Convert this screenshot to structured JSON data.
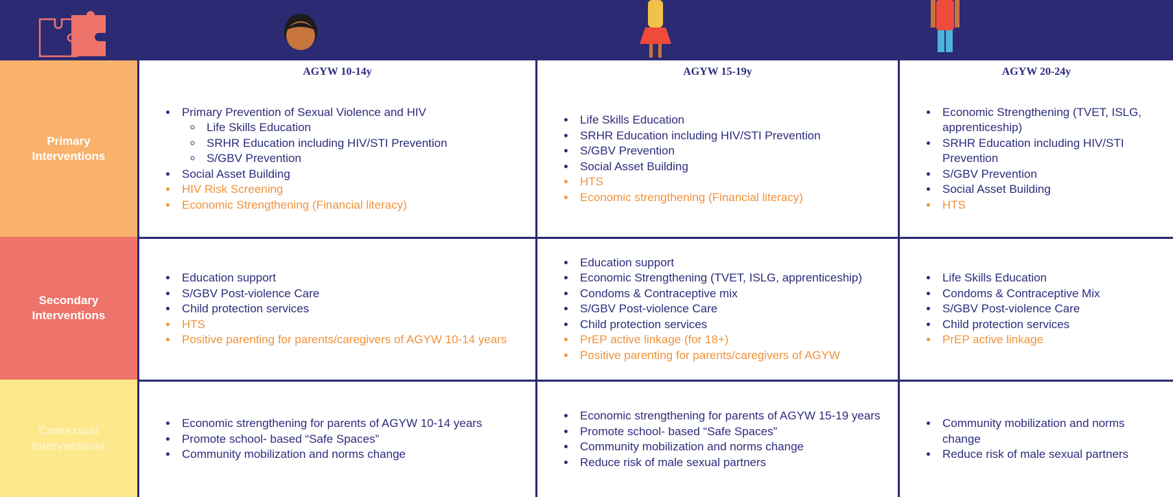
{
  "header": {
    "columns": [
      "AGYW 10-14y",
      "AGYW 15-19y",
      "AGYW 20-24y"
    ]
  },
  "colors": {
    "normal": "#2b2d7c",
    "highlight": "#f0923b"
  },
  "rows": [
    {
      "label": "Primary Interventions",
      "label_color": "#ffffff",
      "background": "#f8b26c",
      "cells": [
        {
          "items": [
            {
              "text": "Primary Prevention of Sexual Violence and HIV",
              "highlight": false,
              "children": [
                {
                  "text": "Life Skills Education",
                  "highlight": false
                },
                {
                  "text": "SRHR Education including HIV/STI Prevention",
                  "highlight": false
                },
                {
                  "text": "S/GBV Prevention",
                  "highlight": false
                }
              ]
            },
            {
              "text": "Social Asset Building",
              "highlight": false
            },
            {
              "text": "HIV Risk Screening",
              "highlight": true
            },
            {
              "text": "Economic Strengthening (Financial literacy)",
              "highlight": true
            }
          ]
        },
        {
          "items": [
            {
              "text": "Life Skills Education",
              "highlight": false
            },
            {
              "text": "SRHR Education including HIV/STI Prevention",
              "highlight": false
            },
            {
              "text": "S/GBV Prevention",
              "highlight": false
            },
            {
              "text": "Social Asset Building",
              "highlight": false
            },
            {
              "text": "HTS",
              "highlight": true
            },
            {
              "text": "Economic strengthening (Financial literacy)",
              "highlight": true
            }
          ]
        },
        {
          "items": [
            {
              "text": "Economic Strengthening (TVET, ISLG, apprenticeship)",
              "highlight": false
            },
            {
              "text": "SRHR Education including HIV/STI Prevention",
              "highlight": false
            },
            {
              "text": "S/GBV Prevention",
              "highlight": false
            },
            {
              "text": "Social Asset Building",
              "highlight": false
            },
            {
              "text": "HTS",
              "highlight": true
            }
          ]
        }
      ]
    },
    {
      "label": "Secondary Interventions",
      "label_color": "#ffffff",
      "background": "#ee736a",
      "cells": [
        {
          "items": [
            {
              "text": "Education support",
              "highlight": false
            },
            {
              "text": "S/GBV Post-violence Care",
              "highlight": false
            },
            {
              "text": "Child protection services",
              "highlight": false
            },
            {
              "text": "HTS",
              "highlight": true
            },
            {
              "text": "Positive parenting for parents/caregivers of AGYW 10-14 years",
              "highlight": true
            }
          ]
        },
        {
          "items": [
            {
              "text": "Education support",
              "highlight": false
            },
            {
              "text": "Economic Strengthening (TVET, ISLG, apprenticeship)",
              "highlight": false
            },
            {
              "text": "Condoms & Contraceptive mix",
              "highlight": false
            },
            {
              "text": "S/GBV Post-violence Care",
              "highlight": false
            },
            {
              "text": "Child protection services",
              "highlight": false
            },
            {
              "text": "PrEP active linkage (for 18+)",
              "highlight": true
            },
            {
              "text": "Positive parenting for parents/caregivers of AGYW",
              "highlight": true
            }
          ]
        },
        {
          "items": [
            {
              "text": "Life Skills Education",
              "highlight": false
            },
            {
              "text": "Condoms & Contraceptive Mix",
              "highlight": false
            },
            {
              "text": "S/GBV Post-violence Care",
              "highlight": false
            },
            {
              "text": "Child protection services",
              "highlight": false
            },
            {
              "text": "PrEP active linkage",
              "highlight": true
            }
          ]
        }
      ]
    },
    {
      "label": "Contextual Interventions",
      "label_color": "#fbf3c8",
      "background": "#fde98b",
      "cells": [
        {
          "items": [
            {
              "text": "Economic strengthening for parents of AGYW 10-14 years",
              "highlight": false
            },
            {
              "text": "Promote school- based “Safe Spaces”",
              "highlight": false
            },
            {
              "text": "Community mobilization and norms change",
              "highlight": false
            }
          ]
        },
        {
          "items": [
            {
              "text": "Economic strengthening for parents of AGYW 15-19 years",
              "highlight": false
            },
            {
              "text": "Promote school- based “Safe Spaces”",
              "highlight": false
            },
            {
              "text": "Community mobilization and norms change",
              "highlight": false
            },
            {
              "text": "Reduce risk of male sexual  partners",
              "highlight": false
            }
          ]
        },
        {
          "items": [
            {
              "text": "Community mobilization and norms change",
              "highlight": false
            },
            {
              "text": "Reduce risk of male sexual  partners",
              "highlight": false
            }
          ]
        }
      ]
    }
  ]
}
